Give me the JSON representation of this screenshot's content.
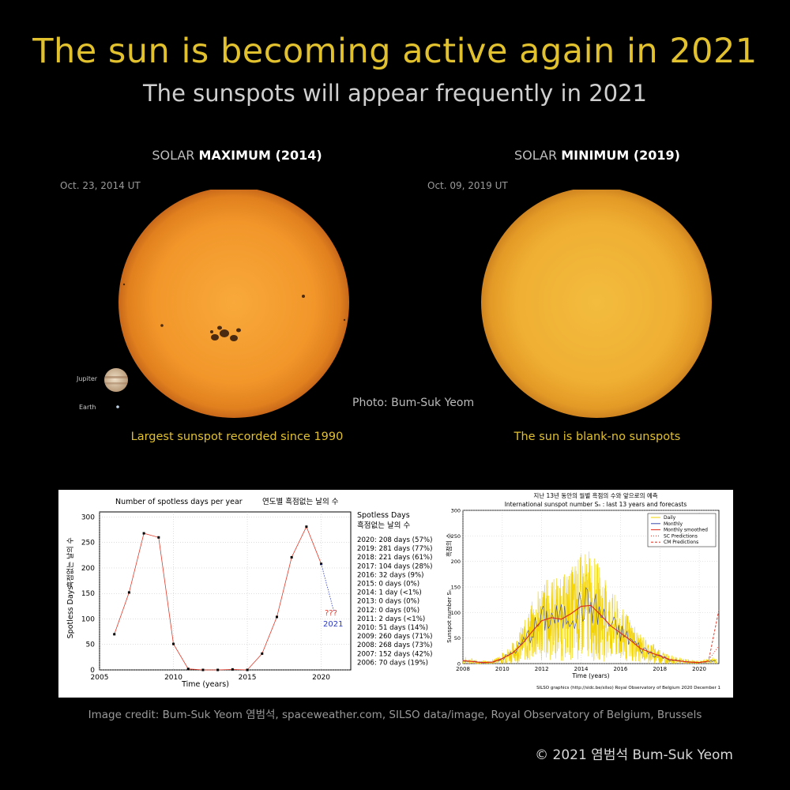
{
  "header": {
    "title": "The sun is becoming active again in 2021",
    "subtitle": "The sunspots will appear frequently in 2021"
  },
  "left_panel": {
    "label_prefix": "SOLAR",
    "label_bold": "MAXIMUM (2014)",
    "date": "Oct. 23, 2014 UT",
    "caption": "Largest sunspot recorded since 1990",
    "jupiter_label": "Jupiter",
    "earth_label": "Earth"
  },
  "right_panel": {
    "label_prefix": "SOLAR",
    "label_bold": "MINIMUM (2019)",
    "date": "Oct. 09, 2019 UT",
    "caption": "The sun is blank-no sunspots"
  },
  "photo_credit": "Photo: Bum-Suk Yeom",
  "chart_data": [
    {
      "type": "line",
      "title": "Number of spotless days per year",
      "title_ko": "연도별 흑점없는 날의 수",
      "xlabel": "Time (years)",
      "ylabel": "Spotless Days",
      "ylabel_ko": "흑점없는 날의 수",
      "xlim": [
        2005,
        2022
      ],
      "ylim": [
        0,
        310
      ],
      "x_ticks": [
        "2005",
        "2010",
        "2015",
        "2020"
      ],
      "y_ticks": [
        "0",
        "50",
        "100",
        "150",
        "200",
        "250",
        "300"
      ],
      "x": [
        2006,
        2007,
        2008,
        2009,
        2010,
        2011,
        2012,
        2013,
        2014,
        2015,
        2016,
        2017,
        2018,
        2019,
        2020
      ],
      "values": [
        70,
        152,
        268,
        260,
        51,
        2,
        0,
        0,
        1,
        0,
        32,
        104,
        221,
        281,
        208
      ],
      "forecast_label": "???",
      "forecast_year": "2021",
      "legend_title": "Spotless Days",
      "legend_title_ko": "흑점없는 날의 수",
      "legend": [
        "2020: 208 days (57%)",
        "2019: 281 days (77%)",
        "2018: 221 days (61%)",
        "2017: 104 days (28%)",
        "2016: 32 days (9%)",
        "2015: 0 days (0%)",
        "2014: 1 day (<1%)",
        "2013: 0 days (0%)",
        "2012: 0 days (0%)",
        "2011: 2 days (<1%)",
        "2010: 51 days (14%)",
        "2009: 260 days (71%)",
        "2008: 268 days (73%)",
        "2007: 152 days (42%)",
        "2006: 70 days (19%)"
      ]
    },
    {
      "type": "line",
      "title_ko": "지난 13년 동안의 월별 흑점의 수와 앞으로의 예측",
      "title": "International sunspot number Sₙ : last 13 years and forecasts",
      "xlabel": "Time (years)",
      "ylabel": "Sunspot number Sₙ",
      "ylabel_ko": "흑점의 수",
      "xlim": [
        2008,
        2021
      ],
      "ylim": [
        0,
        300
      ],
      "x_ticks": [
        "2008",
        "2010",
        "2012",
        "2014",
        "2016",
        "2018",
        "2020"
      ],
      "y_ticks": [
        "0",
        "50",
        "100",
        "150",
        "200",
        "250",
        "300"
      ],
      "legend": [
        "Daily",
        "Monthly",
        "Monthly smoothed",
        "SC Predictions",
        "CM Predictions"
      ],
      "series": [
        {
          "name": "Monthly smoothed",
          "x": [
            2008,
            2008.5,
            2009,
            2009.5,
            2010,
            2010.5,
            2011,
            2011.5,
            2012,
            2012.5,
            2013,
            2013.5,
            2014,
            2014.5,
            2015,
            2015.5,
            2016,
            2016.5,
            2017,
            2017.5,
            2018,
            2018.5,
            2019,
            2019.5,
            2020,
            2020.5
          ],
          "values": [
            6,
            4,
            2,
            3,
            10,
            20,
            38,
            62,
            84,
            90,
            87,
            98,
            112,
            114,
            95,
            74,
            60,
            46,
            30,
            22,
            15,
            8,
            5,
            3,
            2,
            5
          ]
        },
        {
          "name": "SC Predictions",
          "x": [
            2020.5,
            2021
          ],
          "values": [
            8,
            35
          ]
        },
        {
          "name": "CM Predictions",
          "x": [
            2020.5,
            2021
          ],
          "values": [
            10,
            105
          ]
        }
      ],
      "footer": "SILSO graphics (http://sidc.be/silso)  Royal Observatory of Belgium  2020 December 1"
    }
  ],
  "colors": {
    "title": "#e2c12e",
    "sun_max": "#f29a2e",
    "sun_min": "#f0b437"
  },
  "image_credit": "Image credit: Bum-Suk Yeom 염범석, spaceweather.com, SILSO data/image, Royal Observatory of Belgium, Brussels",
  "copyright": "© 2021 염범석 Bum-Suk Yeom"
}
